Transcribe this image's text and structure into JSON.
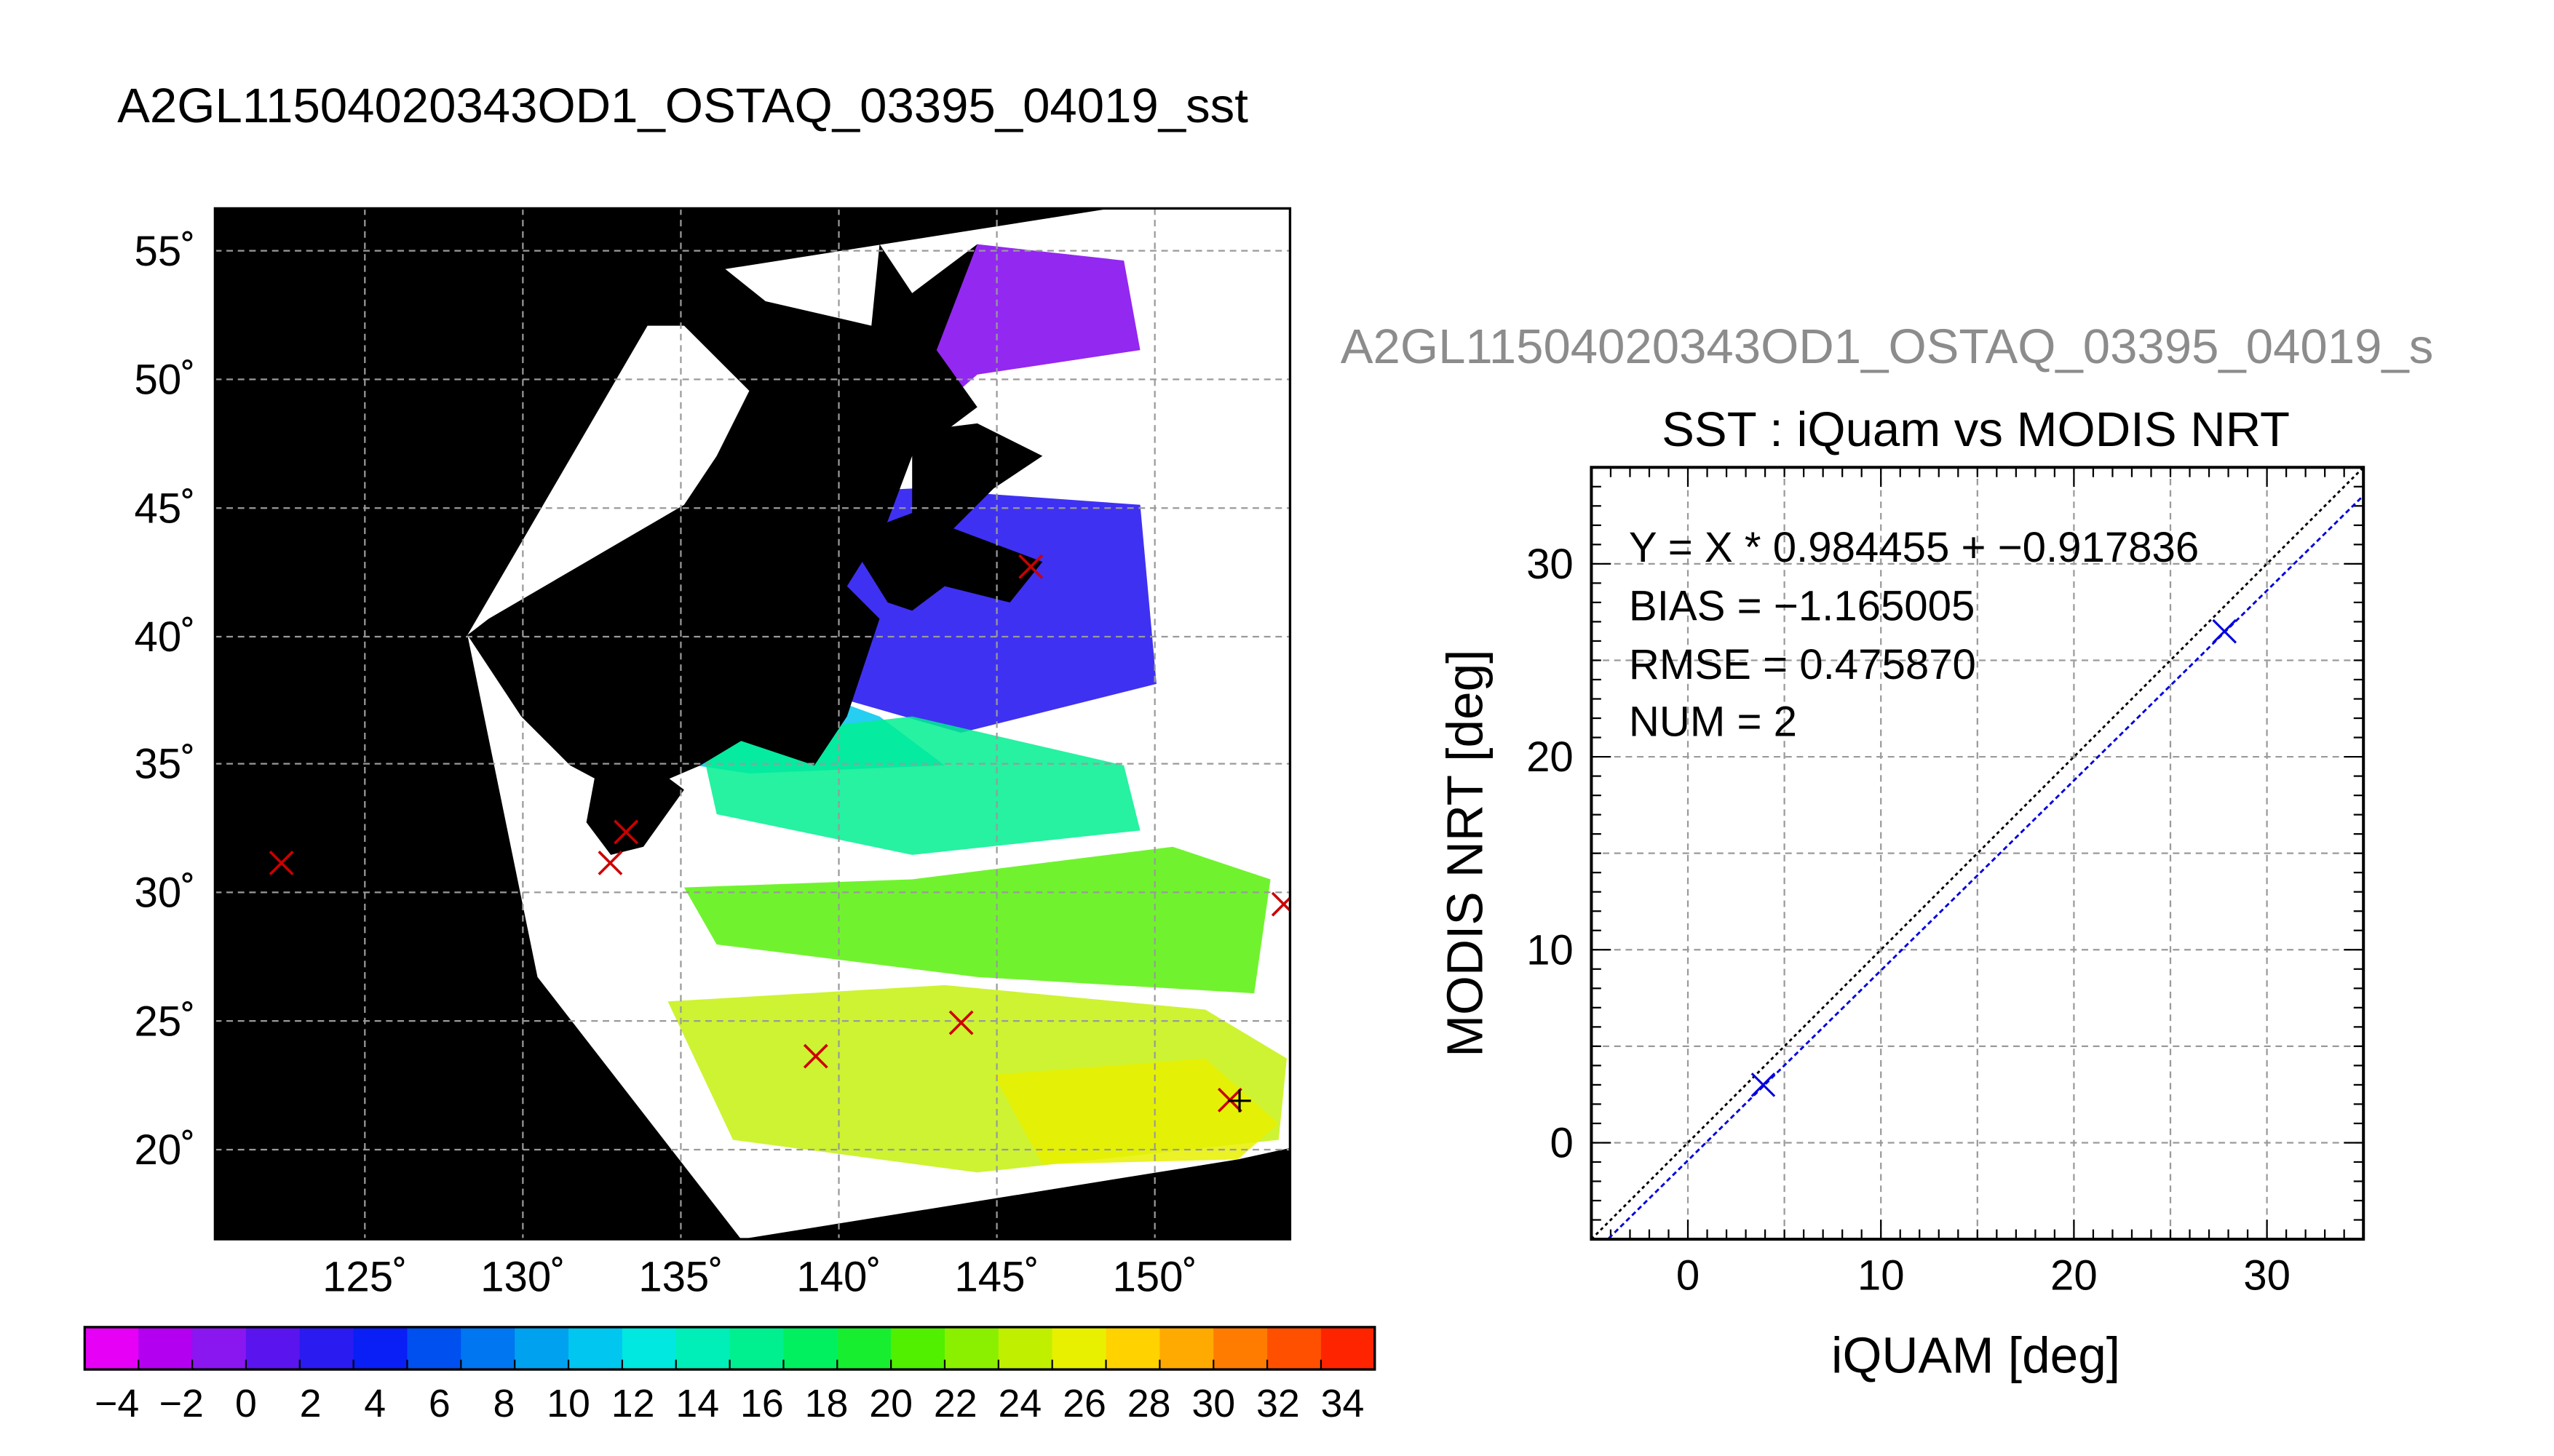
{
  "figure_title": "A2GL11504020343OD1_OSTAQ_03395_04019_sst",
  "right_header": "A2GL11504020343OD1_OSTAQ_03395_04019_s",
  "colors": {
    "match_marker": "#cc0000",
    "fit_line": "#0000dd",
    "identity_line": "#000000",
    "land": "#000000",
    "cloud": "#ffffff"
  },
  "map": {
    "lat_labels": [
      "55˚",
      "50˚",
      "45˚",
      "40˚",
      "35˚",
      "30˚",
      "25˚",
      "20˚"
    ],
    "lon_labels": [
      "125˚",
      "130˚",
      "135˚",
      "140˚",
      "145˚",
      "150˚"
    ],
    "colorbar": {
      "labels": [
        "−4",
        "−2",
        "0",
        "2",
        "4",
        "6",
        "8",
        "10",
        "12",
        "14",
        "16",
        "18",
        "20",
        "22",
        "24",
        "26",
        "28",
        "30",
        "32",
        "34"
      ],
      "colors": [
        "#e600f5",
        "#b400f0",
        "#8a16f0",
        "#5a14ee",
        "#2a1bf0",
        "#0a1ef6",
        "#0050f0",
        "#0076f0",
        "#00a2f0",
        "#00c6f0",
        "#00e8e0",
        "#00eeb8",
        "#00f090",
        "#00f060",
        "#18ee30",
        "#50f000",
        "#8af000",
        "#c0f000",
        "#e8f000",
        "#ffd200",
        "#ffaa00",
        "#ff7c00",
        "#ff5000",
        "#ff2400"
      ]
    }
  },
  "chart_data": [
    {
      "type": "map",
      "title": "A2GL11504020343OD1_OSTAQ_03395_04019_sst",
      "lat_range": [
        16.5,
        56.5
      ],
      "lon_range": [
        120.5,
        154.5
      ],
      "colorbar_range": [
        -5,
        35
      ],
      "colorbar_unit": "",
      "match_points": [
        {
          "lon": 122.6,
          "lat": 31.1
        },
        {
          "lon": 133.0,
          "lat": 31.1
        },
        {
          "lon": 133.5,
          "lat": 32.3
        },
        {
          "lon": 146.3,
          "lat": 42.6
        },
        {
          "lon": 154.3,
          "lat": 29.5
        },
        {
          "lon": 139.5,
          "lat": 23.6
        },
        {
          "lon": 144.1,
          "lat": 24.9
        },
        {
          "lon": 152.6,
          "lat": 21.9
        }
      ]
    },
    {
      "type": "scatter",
      "title": "SST : iQuam vs MODIS NRT",
      "xlabel": "iQUAM [deg]",
      "ylabel": "MODIS NRT [deg]",
      "xlim": [
        -5,
        35
      ],
      "ylim": [
        -5,
        35
      ],
      "xticks": [
        0,
        10,
        20,
        30
      ],
      "yticks": [
        0,
        10,
        20,
        30
      ],
      "grid": true,
      "points": [
        {
          "x": 3.9,
          "y": 3.0
        },
        {
          "x": 27.8,
          "y": 26.5
        }
      ],
      "fit": {
        "slope": 0.984455,
        "intercept": -0.917836
      },
      "stats": {
        "equation": "Y = X * 0.984455 + −0.917836",
        "bias": "BIAS = −1.165005",
        "rmse": "RMSE = 0.475870",
        "num": "NUM = 2"
      }
    }
  ]
}
